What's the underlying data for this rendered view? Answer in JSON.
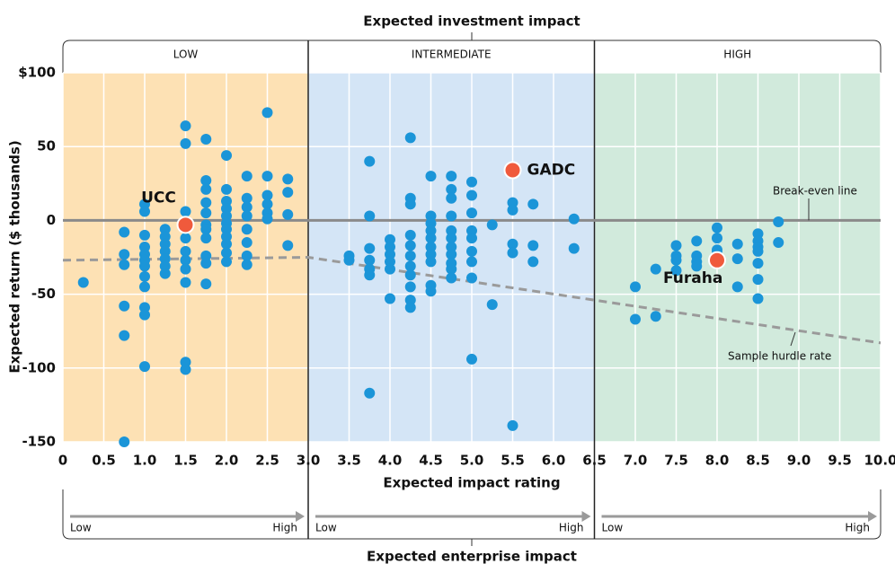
{
  "chart_data": {
    "type": "scatter",
    "title": "Expected investment impact",
    "x_label": "Expected impact rating",
    "y_label": "Expected return ($ thousands)",
    "bottom_title": "Expected enterprise impact",
    "xlim": [
      0,
      10
    ],
    "ylim": [
      -150,
      100
    ],
    "xticks": [
      0,
      0.5,
      {
        "value": 1,
        "label": "1.0"
      },
      1.5,
      {
        "value": 2,
        "label": "2.0"
      },
      2.5,
      {
        "value": 3,
        "label": "3.0"
      },
      3.5,
      {
        "value": 4,
        "label": "4.0"
      },
      4.5,
      {
        "value": 5,
        "label": "5.0"
      },
      5.5,
      {
        "value": 6,
        "label": "6.0"
      },
      6.5,
      {
        "value": 7,
        "label": "7.0"
      },
      7.5,
      {
        "value": 8,
        "label": "8.0"
      },
      8.5,
      {
        "value": 9,
        "label": "9.0"
      },
      9.5,
      {
        "value": 10,
        "label": "10.0"
      }
    ],
    "yticks": [
      {
        "value": 100,
        "label": "$100"
      },
      50,
      0,
      -50,
      -100,
      -150
    ],
    "grid": true,
    "zones": [
      {
        "label": "LOW",
        "from": 0,
        "to": 3,
        "color": "#fde1b4",
        "low_label": "Low",
        "high_label": "High"
      },
      {
        "label": "INTERMEDIATE",
        "from": 3,
        "to": 6.5,
        "color": "#d4e5f6",
        "low_label": "Low",
        "high_label": "High"
      },
      {
        "label": "HIGH",
        "from": 6.5,
        "to": 10,
        "color": "#d1eadc",
        "low_label": "Low",
        "high_label": "High"
      }
    ],
    "lines": [
      {
        "name": "Break-even line",
        "x": [
          0,
          10
        ],
        "values": [
          0,
          0
        ],
        "color": "#8a8a8a",
        "dashed": false
      },
      {
        "name": "Sample hurdle rate",
        "x": [
          0,
          3,
          10
        ],
        "values": [
          -27,
          -25,
          -83
        ],
        "color": "#9a9a9a",
        "dashed": true
      }
    ],
    "series": [
      {
        "color": "#1b95d8",
        "x": [
          0.25,
          0.75,
          0.75,
          0.75,
          0.75,
          0.75,
          0.75,
          1,
          1,
          1,
          1,
          1,
          1,
          1,
          1,
          1,
          1,
          1,
          1,
          1.25,
          1.25,
          1.25,
          1.25,
          1.25,
          1.25,
          1.25,
          1.5,
          1.5,
          1.5,
          1.5,
          1.5,
          1.5,
          1.5,
          1.5,
          1.5,
          1.5,
          1.75,
          1.75,
          1.75,
          1.75,
          1.75,
          1.75,
          1.75,
          1.75,
          1.75,
          1.75,
          1.75,
          2,
          2,
          2,
          2,
          2,
          2,
          2,
          2,
          2,
          2,
          2,
          2.25,
          2.25,
          2.25,
          2.25,
          2.25,
          2.25,
          2.25,
          2.25,
          2.5,
          2.5,
          2.5,
          2.5,
          2.5,
          2.5,
          2.75,
          2.75,
          2.75,
          2.75,
          3.5,
          3.5,
          3.75,
          3.75,
          3.75,
          3.75,
          3.75,
          3.75,
          3.75,
          4,
          4,
          4,
          4,
          4,
          4,
          4.25,
          4.25,
          4.25,
          4.25,
          4.25,
          4.25,
          4.25,
          4.25,
          4.25,
          4.25,
          4.25,
          4.5,
          4.5,
          4.5,
          4.5,
          4.5,
          4.5,
          4.5,
          4.5,
          4.5,
          4.5,
          4.75,
          4.75,
          4.75,
          4.75,
          4.75,
          4.75,
          4.75,
          4.75,
          4.75,
          4.75,
          4.75,
          5,
          5,
          5,
          5,
          5,
          5,
          5,
          5,
          5,
          5.25,
          5.25,
          5.5,
          5.5,
          5.5,
          5.5,
          5.5,
          5.75,
          5.75,
          5.75,
          6.25,
          6.25,
          7,
          7,
          7.25,
          7.25,
          7.5,
          7.5,
          7.5,
          7.5,
          7.75,
          7.75,
          7.75,
          7.75,
          8,
          8,
          8,
          8,
          8.25,
          8.25,
          8.25,
          8.5,
          8.5,
          8.5,
          8.5,
          8.5,
          8.5,
          8.5,
          8.75,
          8.75
        ],
        "values": [
          -42,
          -8,
          -23,
          -30,
          -58,
          -78,
          -150,
          11,
          6,
          -10,
          -18,
          -23,
          -27,
          -31,
          -38,
          -45,
          -59,
          -64,
          -99,
          -6,
          -11,
          -16,
          -21,
          -26,
          -31,
          -36,
          64,
          52,
          6,
          -12,
          -21,
          -27,
          -33,
          -42,
          -96,
          -101,
          55,
          27,
          21,
          12,
          5,
          -3,
          -6,
          -12,
          -24,
          -29,
          -43,
          44,
          21,
          13,
          8,
          3,
          -2,
          -6,
          -11,
          -16,
          -22,
          -28,
          30,
          15,
          9,
          3,
          -6,
          -15,
          -24,
          -30,
          73,
          30,
          17,
          11,
          5,
          1,
          28,
          19,
          4,
          -17,
          -24,
          -27,
          40,
          3,
          -19,
          -27,
          -33,
          -37,
          -117,
          -13,
          -18,
          -23,
          -28,
          -33,
          -53,
          56,
          15,
          11,
          -10,
          -17,
          -24,
          -31,
          -37,
          -45,
          -54,
          -59,
          30,
          3,
          -2,
          -7,
          -12,
          -18,
          -23,
          -28,
          -44,
          -48,
          30,
          21,
          15,
          3,
          -7,
          -12,
          -18,
          -23,
          -29,
          -33,
          -39,
          26,
          17,
          5,
          -7,
          -12,
          -21,
          -28,
          -39,
          -94,
          -3,
          -57,
          12,
          7,
          -16,
          -22,
          -139,
          11,
          -17,
          -28,
          1,
          -19,
          -45,
          -67,
          -33,
          -65,
          -17,
          -24,
          -27,
          -34,
          -14,
          -24,
          -28,
          -31,
          -5,
          -12,
          -20,
          -22,
          -16,
          -26,
          -45,
          -9,
          -14,
          -18,
          -21,
          -29,
          -40,
          -53,
          -1,
          -15
        ]
      }
    ],
    "highlights": [
      {
        "label": "UCC",
        "x": 1.5,
        "y": -3,
        "color": "#f05a3c"
      },
      {
        "label": "GADC",
        "x": 5.5,
        "y": 34,
        "color": "#f05a3c"
      },
      {
        "label": "Furaha",
        "x": 8,
        "y": -27,
        "color": "#f05a3c"
      }
    ]
  }
}
